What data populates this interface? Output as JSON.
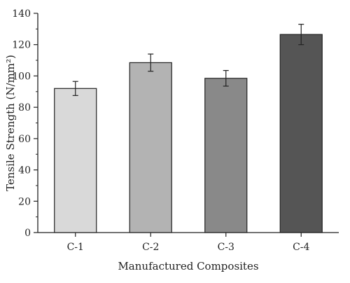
{
  "chart_data": {
    "type": "bar",
    "categories": [
      "C-1",
      "C-2",
      "C-3",
      "C-4"
    ],
    "values": [
      92,
      108.5,
      98.5,
      126.5
    ],
    "errors": [
      4.5,
      5.5,
      5,
      6.5
    ],
    "bar_colors": [
      "#d9d9d9",
      "#b3b3b3",
      "#898989",
      "#555555"
    ],
    "xlabel": "Manufactured Composites",
    "ylabel": "Tensile Strength (N/mm²)",
    "ylim": [
      0,
      140
    ],
    "yticks": [
      0,
      20,
      40,
      60,
      80,
      100,
      120,
      140
    ],
    "grid": false
  }
}
